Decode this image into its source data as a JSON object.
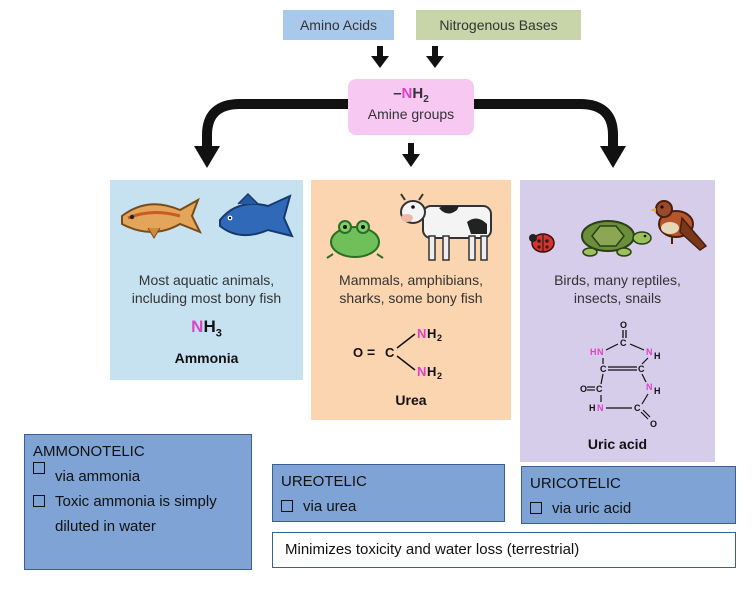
{
  "top": {
    "amino_acids": "Amino Acids",
    "nitrogenous_bases": "Nitrogenous Bases"
  },
  "amine": {
    "formula_dash": "–",
    "formula_n": "N",
    "formula_h": "H",
    "formula_sub": "2",
    "label": "Amine groups"
  },
  "ammonia_panel": {
    "desc_line1": "Most aquatic animals,",
    "desc_line2": "including most bony fish",
    "formula_n": "N",
    "formula_h": "H",
    "formula_sub": "3",
    "name": "Ammonia"
  },
  "urea_panel": {
    "desc_line1": "Mammals, amphibians,",
    "desc_line2": "sharks, some bony fish",
    "struct": {
      "o": "O",
      "eq": "=",
      "c": "C",
      "dash": "—",
      "n": "N",
      "h": "H",
      "sub": "2"
    },
    "name": "Urea"
  },
  "uric_panel": {
    "desc_line1": "Birds, many reptiles,",
    "desc_line2": "insects, snails",
    "struct": {
      "o": "O",
      "c": "C",
      "n": "N",
      "h": "H"
    },
    "name": "Uric acid"
  },
  "ammonotelic": {
    "title": "AMMONOTELIC",
    "items": [
      "via ammonia",
      "Toxic ammonia is simply diluted in water"
    ]
  },
  "ureotelic": {
    "title": "UREOTELIC",
    "items": [
      "via urea"
    ]
  },
  "uricotelic": {
    "title": "URICOTELIC",
    "items": [
      "via uric acid"
    ]
  },
  "minimizes": "Minimizes toxicity and water loss (terrestrial)",
  "colors": {
    "amine_pink": "#e040c8",
    "ammonia_bg": "#c6e2f1",
    "urea_bg": "#fbd4b0",
    "uric_bg": "#d6cdea",
    "box_blue": "#7ea3d4"
  },
  "icons": [
    "fish-icon",
    "fish-icon",
    "frog-icon",
    "cow-icon",
    "ladybug-icon",
    "turtle-icon",
    "bird-icon",
    "arrow-down-icon"
  ]
}
